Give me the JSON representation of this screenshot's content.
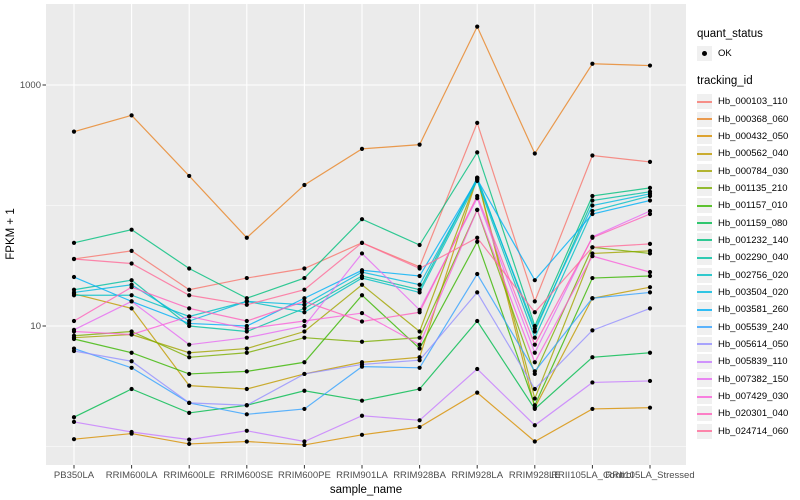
{
  "chart_data": {
    "type": "line",
    "xlabel": "sample_name",
    "ylabel": "FPKM + 1",
    "y_scale": "log10",
    "y_ticks": [
      {
        "label": "1000",
        "value": 1000
      },
      {
        "label": "10",
        "value": 10
      }
    ],
    "y_minor_gridlines": [
      1,
      100
    ],
    "ylim": [
      0.95,
      4600
    ],
    "grid": true,
    "panel_bg": "#EBEBEB",
    "grid_color": "#FFFFFF",
    "point_color": "#000000",
    "legend_position": "right",
    "categories": [
      "PB350LA",
      "RRIM600LA",
      "RRIM600LE",
      "RRIM600SE",
      "RRIM600PE",
      "RRIM901LA",
      "RRIM928BA",
      "RRIM928LA",
      "RRIM928LE",
      "RRII105LA_Control",
      "RRII105LA_Stressed"
    ],
    "series": [
      {
        "name": "Hb_000103_110",
        "color": "#F8766D",
        "values": [
          36,
          42,
          20,
          25,
          30,
          49,
          31,
          485,
          16,
          260,
          230
        ]
      },
      {
        "name": "Hb_000368_060",
        "color": "#E88526",
        "values": [
          410,
          560,
          176,
          54,
          148,
          295,
          320,
          3050,
          270,
          1500,
          1450
        ]
      },
      {
        "name": "Hb_000432_050",
        "color": "#D89000",
        "values": [
          1.15,
          1.28,
          1.05,
          1.1,
          1.03,
          1.25,
          1.45,
          2.8,
          1.1,
          2.05,
          2.1
        ]
      },
      {
        "name": "Hb_000562_040",
        "color": "#C09B00",
        "values": [
          18.5,
          14,
          3.2,
          3.0,
          4.0,
          5.0,
          5.5,
          170,
          2.1,
          17,
          21
        ]
      },
      {
        "name": "Hb_000784_030",
        "color": "#A3A500",
        "values": [
          8.0,
          8.5,
          6.0,
          6.5,
          9.0,
          22,
          9.0,
          170,
          2.5,
          40,
          42
        ]
      },
      {
        "name": "Hb_001135_210",
        "color": "#7CAE00",
        "values": [
          8.3,
          9.0,
          5.5,
          6.0,
          8.0,
          7.4,
          8.0,
          92,
          4.0,
          45,
          40
        ]
      },
      {
        "name": "Hb_001157_010",
        "color": "#39B600",
        "values": [
          7.8,
          6.0,
          4.0,
          4.2,
          5.0,
          18,
          6.5,
          50,
          2.2,
          25,
          26
        ]
      },
      {
        "name": "Hb_001159_080",
        "color": "#00BB4E",
        "values": [
          1.75,
          3.0,
          1.9,
          2.2,
          2.9,
          2.4,
          3.0,
          11,
          2.05,
          5.5,
          6.0
        ]
      },
      {
        "name": "Hb_001232_140",
        "color": "#00BF7D",
        "values": [
          49,
          63,
          30,
          17,
          25,
          77,
          47,
          276,
          10,
          120,
          140
        ]
      },
      {
        "name": "Hb_002290_040",
        "color": "#00C1A3",
        "values": [
          20,
          24,
          10,
          9.0,
          14,
          26,
          20,
          170,
          9.0,
          110,
          130
        ]
      },
      {
        "name": "Hb_002756_020",
        "color": "#00BFC4",
        "values": [
          18,
          18,
          12,
          16,
          13,
          25,
          19,
          160,
          8.0,
          90,
          120
        ]
      },
      {
        "name": "Hb_003504_020",
        "color": "#00BAE0",
        "values": [
          19,
          22,
          11,
          16,
          15,
          28,
          22,
          165,
          9.5,
          100,
          125
        ]
      },
      {
        "name": "Hb_003581_260",
        "color": "#00B0F6",
        "values": [
          25.5,
          16,
          10.5,
          10,
          17,
          29,
          26,
          165,
          24,
          85,
          110
        ]
      },
      {
        "name": "Hb_005539_240",
        "color": "#35A2FF",
        "values": [
          6.5,
          4.5,
          2.3,
          1.85,
          2.05,
          4.6,
          4.5,
          27,
          4.2,
          17,
          19
        ]
      },
      {
        "name": "Hb_005614_050",
        "color": "#9590FF",
        "values": [
          6.2,
          5.1,
          2.3,
          2.2,
          4.0,
          4.8,
          5.2,
          19,
          3.0,
          9.2,
          14
        ]
      },
      {
        "name": "Hb_005839_110",
        "color": "#C77CFF",
        "values": [
          1.6,
          1.32,
          1.14,
          1.35,
          1.1,
          1.8,
          1.65,
          4.4,
          1.5,
          3.4,
          3.5
        ]
      },
      {
        "name": "Hb_007382_150",
        "color": "#E76BF3",
        "values": [
          9.3,
          16,
          7.0,
          8.0,
          10,
          40,
          13.6,
          115,
          6.0,
          55,
          90
        ]
      },
      {
        "name": "Hb_007429_030",
        "color": "#FA62DB",
        "values": [
          9.0,
          8.5,
          12,
          9.5,
          11,
          12.8,
          7.0,
          92,
          5.0,
          38,
          28
        ]
      },
      {
        "name": "Hb_020301_040",
        "color": "#FF62BC",
        "values": [
          11,
          21,
          14,
          11,
          16,
          10.9,
          13,
          120,
          7.0,
          54,
          85
        ]
      },
      {
        "name": "Hb_024714_060",
        "color": "#FF6A98",
        "values": [
          36,
          33,
          18,
          15,
          20,
          49,
          30,
          54,
          13,
          45,
          48
        ]
      }
    ]
  },
  "legend": {
    "quant_status_title": "quant_status",
    "quant_status_items": [
      {
        "label": "OK",
        "symbol": "point"
      }
    ],
    "tracking_id_title": "tracking_id"
  }
}
